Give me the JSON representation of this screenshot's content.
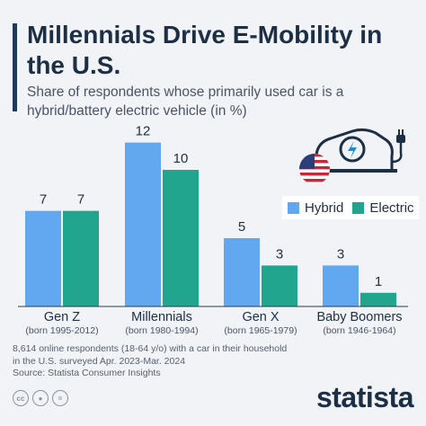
{
  "title": "Millennials Drive E-Mobility in the U.S.",
  "subtitle": "Share of respondents whose primarily used car is a hybrid/battery electric vehicle (in %)",
  "footnote": {
    "line1": "8,614 online respondents (18-64 y/o) with a car in their household",
    "line2": "in the U.S. surveyed Apr. 2023-Mar. 2024",
    "source": "Source: Statista Consumer Insights"
  },
  "brand": "statista",
  "icons": [
    "cc-icon",
    "person-icon",
    "equals-icon",
    "ev-car-charging-icon",
    "us-flag-icon"
  ],
  "colors": {
    "hybrid": "#62a8f0",
    "electric": "#21a58e",
    "title": "#1c2f45"
  },
  "chart_data": {
    "type": "bar",
    "categories": [
      "Gen Z",
      "Millennials",
      "Gen X",
      "Baby Boomers"
    ],
    "category_sublabels": [
      "(born 1995-2012)",
      "(born 1980-1994)",
      "(born 1965-1979)",
      "(born 1946-1964)"
    ],
    "series": [
      {
        "name": "Hybrid",
        "values": [
          7,
          12,
          5,
          3
        ]
      },
      {
        "name": "Electric",
        "values": [
          7,
          10,
          3,
          1
        ]
      }
    ],
    "ylim": [
      0,
      12
    ],
    "grid": false,
    "legend_position": "right",
    "data_labels": true
  }
}
